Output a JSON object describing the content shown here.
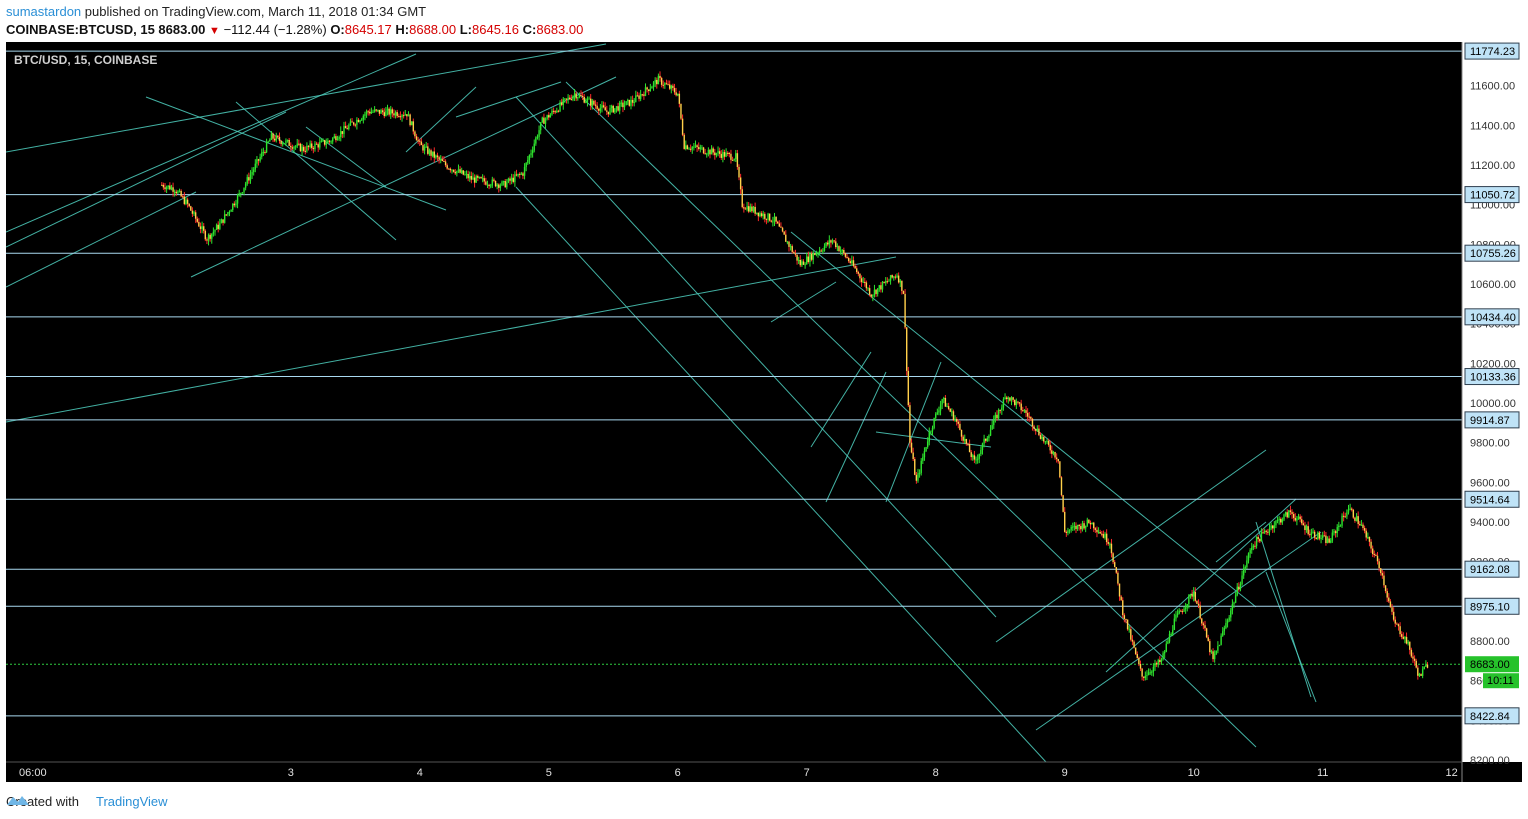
{
  "header": {
    "author": "sumastardon",
    "published_text": "published on TradingView.com, March 11, 2018 01:34 GMT",
    "symbol_line": "COINBASE:BTCUSD, 15",
    "last": "8683.00",
    "change": "−112.44 (−1.28%)",
    "o_label": "O:",
    "o_value": "8645.17",
    "h_label": "H:",
    "h_value": "8688.00",
    "l_label": "L:",
    "l_value": "8645.16",
    "c_label": "C:",
    "c_value": "8683.00"
  },
  "chart_data": {
    "type": "candlestick",
    "symbol_label": "BTC/USD, 15, COINBASE",
    "x_ticks": [
      "06:00",
      "3",
      "4",
      "5",
      "6",
      "7",
      "8",
      "9",
      "10",
      "11",
      "12"
    ],
    "y_ticks": [
      "11600.00",
      "11400.00",
      "11200.00",
      "11000.00",
      "10800.00",
      "10600.00",
      "10400.00",
      "10200.00",
      "10000.00",
      "9800.00",
      "9600.00",
      "9400.00",
      "9200.00",
      "9000.00",
      "8800.00",
      "8600.00",
      "8400.00",
      "8200.00"
    ],
    "ylim": [
      8190,
      11820
    ],
    "horizontal_levels": [
      "11774.23",
      "11050.72",
      "10755.26",
      "10434.40",
      "10133.36",
      "9914.87",
      "9514.64",
      "9162.08",
      "8975.10",
      "8422.84"
    ],
    "last_price_label": "8683.00",
    "countdown_label": "10:11",
    "price_path": [
      [
        2.0,
        11100
      ],
      [
        2.1,
        11080
      ],
      [
        2.2,
        11000
      ],
      [
        2.35,
        10830
      ],
      [
        2.45,
        10900
      ],
      [
        2.6,
        11050
      ],
      [
        2.85,
        11340
      ],
      [
        3.1,
        11280
      ],
      [
        3.3,
        11320
      ],
      [
        3.6,
        11470
      ],
      [
        3.9,
        11460
      ],
      [
        4.0,
        11300
      ],
      [
        4.2,
        11200
      ],
      [
        4.4,
        11130
      ],
      [
        4.65,
        11100
      ],
      [
        4.8,
        11160
      ],
      [
        4.95,
        11420
      ],
      [
        5.2,
        11560
      ],
      [
        5.45,
        11470
      ],
      [
        5.65,
        11520
      ],
      [
        5.85,
        11630
      ],
      [
        6.0,
        11560
      ],
      [
        6.05,
        11300
      ],
      [
        6.3,
        11260
      ],
      [
        6.45,
        11240
      ],
      [
        6.5,
        11000
      ],
      [
        6.75,
        10920
      ],
      [
        6.95,
        10700
      ],
      [
        7.2,
        10820
      ],
      [
        7.35,
        10700
      ],
      [
        7.5,
        10550
      ],
      [
        7.7,
        10650
      ],
      [
        7.75,
        10560
      ],
      [
        7.8,
        9800
      ],
      [
        7.85,
        9600
      ],
      [
        7.95,
        9850
      ],
      [
        8.05,
        10020
      ],
      [
        8.15,
        9920
      ],
      [
        8.3,
        9700
      ],
      [
        8.55,
        10040
      ],
      [
        8.7,
        9950
      ],
      [
        8.85,
        9800
      ],
      [
        8.95,
        9720
      ],
      [
        9.0,
        9350
      ],
      [
        9.2,
        9400
      ],
      [
        9.35,
        9300
      ],
      [
        9.45,
        8950
      ],
      [
        9.6,
        8620
      ],
      [
        9.75,
        8700
      ],
      [
        9.85,
        8900
      ],
      [
        10.0,
        9050
      ],
      [
        10.15,
        8700
      ],
      [
        10.3,
        8980
      ],
      [
        10.45,
        9280
      ],
      [
        10.6,
        9380
      ],
      [
        10.75,
        9450
      ],
      [
        10.9,
        9350
      ],
      [
        11.05,
        9300
      ],
      [
        11.2,
        9470
      ],
      [
        11.3,
        9380
      ],
      [
        11.45,
        9160
      ],
      [
        11.55,
        8900
      ],
      [
        11.65,
        8800
      ],
      [
        11.75,
        8620
      ],
      [
        11.82,
        8690
      ]
    ]
  },
  "footer": {
    "created_with": "Created with",
    "brand": "TradingView"
  }
}
